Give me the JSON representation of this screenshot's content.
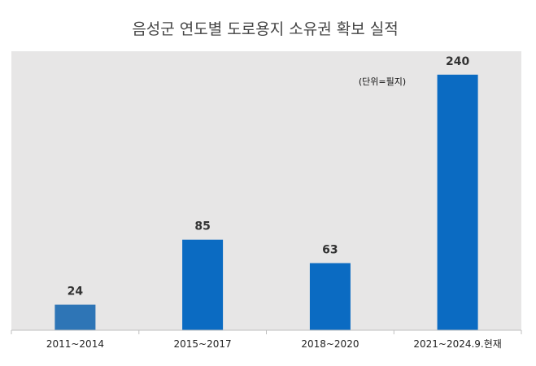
{
  "chart_data": {
    "type": "bar",
    "title": "음성군 연도별 도로용지 소유권 확보 실적",
    "unit_note": "(단위=필지)",
    "categories": [
      "2011~2014",
      "2015~2017",
      "2018~2020",
      "2021~2024.9.현재"
    ],
    "values": [
      24,
      85,
      63,
      240
    ],
    "value_labels": [
      "24",
      "85",
      "63",
      "240"
    ],
    "xlabel": "",
    "ylabel": "",
    "ylim": [
      0,
      262
    ],
    "grid": false,
    "colors": {
      "first_bar": "#2E75B6",
      "bar": "#0B6BC2",
      "plot_background": "#E7E6E6",
      "axis": "#BFBFBF"
    }
  }
}
